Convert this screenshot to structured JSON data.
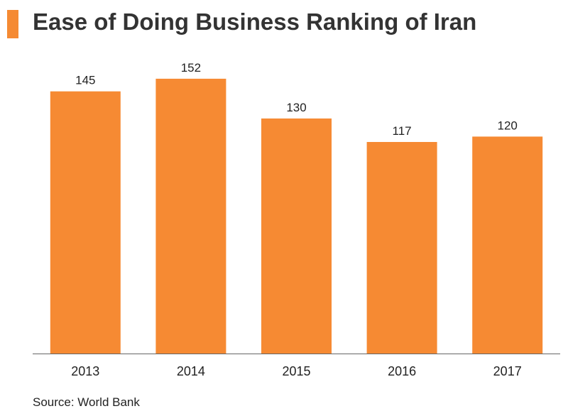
{
  "colors": {
    "accent": "#F58A33",
    "bar": "#F68A33",
    "axis": "#666666"
  },
  "chart_data": {
    "type": "bar",
    "title": "Ease of Doing Business Ranking of Iran",
    "categories": [
      "2013",
      "2014",
      "2015",
      "2016",
      "2017"
    ],
    "values": [
      145,
      152,
      130,
      117,
      120
    ],
    "data_labels": [
      "145",
      "152",
      "130",
      "117",
      "120"
    ],
    "xlabel": "",
    "ylabel": "",
    "ylim": [
      0,
      160
    ],
    "grid": false,
    "y_axis_shown": false,
    "legend": "none"
  },
  "source": "Source: World Bank"
}
